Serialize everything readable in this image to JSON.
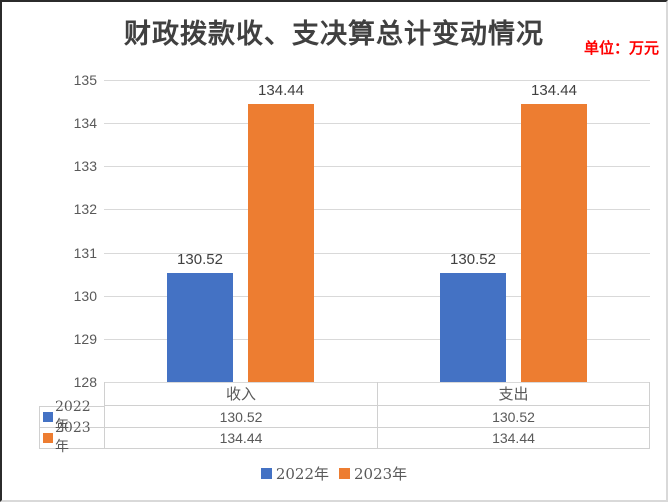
{
  "chart_data": {
    "type": "bar",
    "title": "财政拨款收、支决算总计变动情况",
    "unit": "单位：万元",
    "categories": [
      "收入",
      "支出"
    ],
    "series": [
      {
        "name": "2022年",
        "color": "#4472C4",
        "values": [
          130.52,
          130.52
        ]
      },
      {
        "name": "2023年",
        "color": "#ED7D31",
        "values": [
          134.44,
          134.44
        ]
      }
    ],
    "ylim": [
      128,
      135
    ],
    "yticks": [
      128,
      129,
      130,
      131,
      132,
      133,
      134,
      135
    ],
    "grid": true,
    "legend_position": "bottom",
    "show_data_labels": true,
    "show_data_table": true
  },
  "colors": {
    "grid": "#D9D9D9",
    "axis_text": "#595959",
    "title_text": "#404040",
    "unit_text": "#FF0000",
    "data_label_text": "#404040",
    "table_border": "#D0D0D0"
  }
}
